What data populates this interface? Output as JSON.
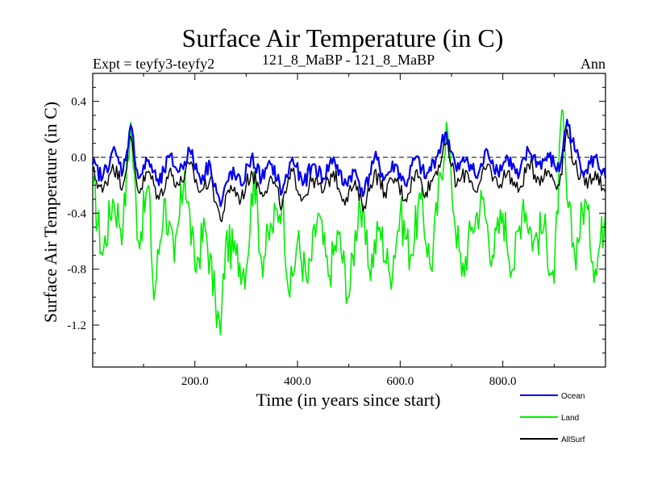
{
  "chart_data": {
    "type": "line",
    "title": "Surface Air Temperature (in C)",
    "subtitle_left": "Expt = teyfy3-teyfy2",
    "subtitle_center": "121_8_MaBP - 121_8_MaBP",
    "subtitle_right": "Ann",
    "xlabel": "Time (in years since start)",
    "ylabel": "Surface Air Temperature (in C)",
    "xlim": [
      1,
      1000
    ],
    "ylim": [
      -1.5,
      0.6
    ],
    "xticks": [
      200,
      400,
      600,
      800
    ],
    "xtick_labels": [
      "200.0",
      "400.0",
      "600.0",
      "800.0"
    ],
    "yticks": [
      0.4,
      0.0,
      -0.4,
      -0.8,
      -1.2
    ],
    "ytick_labels": [
      "0.4",
      "0.0",
      "-0.4",
      "-0.8",
      "-1.2"
    ],
    "reference_line": 0.0,
    "legend_position": "bottom-right",
    "series": [
      {
        "name": "Land",
        "color": "#00ee00",
        "x": [
          1,
          20,
          40,
          60,
          75,
          90,
          110,
          120,
          140,
          160,
          180,
          200,
          220,
          240,
          250,
          260,
          280,
          300,
          315,
          330,
          350,
          370,
          385,
          400,
          420,
          440,
          460,
          480,
          500,
          520,
          540,
          560,
          580,
          600,
          620,
          640,
          660,
          690,
          700,
          720,
          740,
          760,
          780,
          800,
          820,
          840,
          860,
          880,
          900,
          915,
          925,
          940,
          960,
          980,
          1000
        ],
        "values": [
          -0.2,
          -0.7,
          -0.3,
          -0.5,
          0.25,
          -0.6,
          -0.2,
          -1.02,
          -0.3,
          -0.75,
          -0.1,
          -0.8,
          -0.5,
          -1.03,
          -1.27,
          -0.6,
          -0.7,
          -0.8,
          -0.1,
          -0.75,
          -0.5,
          -0.3,
          -1.0,
          -0.6,
          -0.9,
          -0.4,
          -0.85,
          -0.55,
          -1.0,
          -0.3,
          -0.8,
          -0.5,
          -0.85,
          -0.4,
          -0.7,
          -0.3,
          -0.8,
          0.25,
          -0.2,
          -0.85,
          -0.5,
          -0.3,
          -0.7,
          -0.4,
          -0.8,
          -0.3,
          -0.6,
          -0.5,
          -0.9,
          0.34,
          -0.3,
          -0.7,
          -0.3,
          -0.8,
          -0.4
        ]
      },
      {
        "name": "AllSurf",
        "color": "#000000",
        "x": [
          1,
          20,
          40,
          60,
          75,
          90,
          110,
          130,
          150,
          170,
          190,
          210,
          230,
          250,
          270,
          290,
          310,
          330,
          350,
          370,
          390,
          410,
          430,
          450,
          470,
          490,
          510,
          530,
          550,
          570,
          590,
          610,
          630,
          650,
          670,
          690,
          710,
          730,
          750,
          770,
          790,
          810,
          830,
          850,
          870,
          890,
          910,
          925,
          940,
          960,
          980,
          1000
        ],
        "values": [
          -0.1,
          -0.25,
          -0.05,
          -0.2,
          0.15,
          -0.25,
          -0.1,
          -0.3,
          -0.1,
          -0.2,
          -0.05,
          -0.25,
          -0.15,
          -0.45,
          -0.2,
          -0.3,
          -0.1,
          -0.25,
          -0.15,
          -0.35,
          -0.1,
          -0.3,
          -0.15,
          -0.25,
          -0.1,
          -0.3,
          -0.2,
          -0.35,
          -0.1,
          -0.25,
          -0.15,
          -0.3,
          -0.1,
          -0.25,
          -0.1,
          0.1,
          -0.2,
          -0.1,
          -0.25,
          -0.05,
          -0.2,
          -0.1,
          -0.25,
          -0.05,
          -0.15,
          -0.1,
          -0.2,
          0.2,
          -0.05,
          -0.2,
          -0.1,
          -0.25
        ]
      },
      {
        "name": "Ocean",
        "color": "#0000ee",
        "x": [
          1,
          20,
          40,
          60,
          75,
          90,
          110,
          130,
          150,
          170,
          190,
          210,
          230,
          250,
          270,
          290,
          310,
          330,
          350,
          370,
          390,
          410,
          430,
          450,
          470,
          490,
          510,
          530,
          550,
          570,
          590,
          610,
          630,
          650,
          670,
          690,
          710,
          730,
          750,
          770,
          790,
          810,
          830,
          850,
          870,
          890,
          910,
          925,
          940,
          960,
          980,
          1000
        ],
        "values": [
          -0.05,
          -0.15,
          0.05,
          -0.1,
          0.23,
          -0.15,
          -0.02,
          -0.2,
          0.0,
          -0.1,
          0.05,
          -0.15,
          -0.05,
          -0.35,
          -0.1,
          -0.2,
          0.0,
          -0.15,
          -0.05,
          -0.25,
          0.0,
          -0.2,
          -0.05,
          -0.15,
          0.0,
          -0.2,
          -0.1,
          -0.25,
          0.0,
          -0.15,
          -0.05,
          -0.2,
          0.0,
          -0.15,
          0.0,
          0.18,
          -0.1,
          0.0,
          -0.15,
          0.05,
          -0.1,
          0.0,
          -0.15,
          0.05,
          -0.05,
          0.0,
          -0.1,
          0.27,
          0.05,
          -0.1,
          0.0,
          -0.15
        ]
      }
    ]
  }
}
